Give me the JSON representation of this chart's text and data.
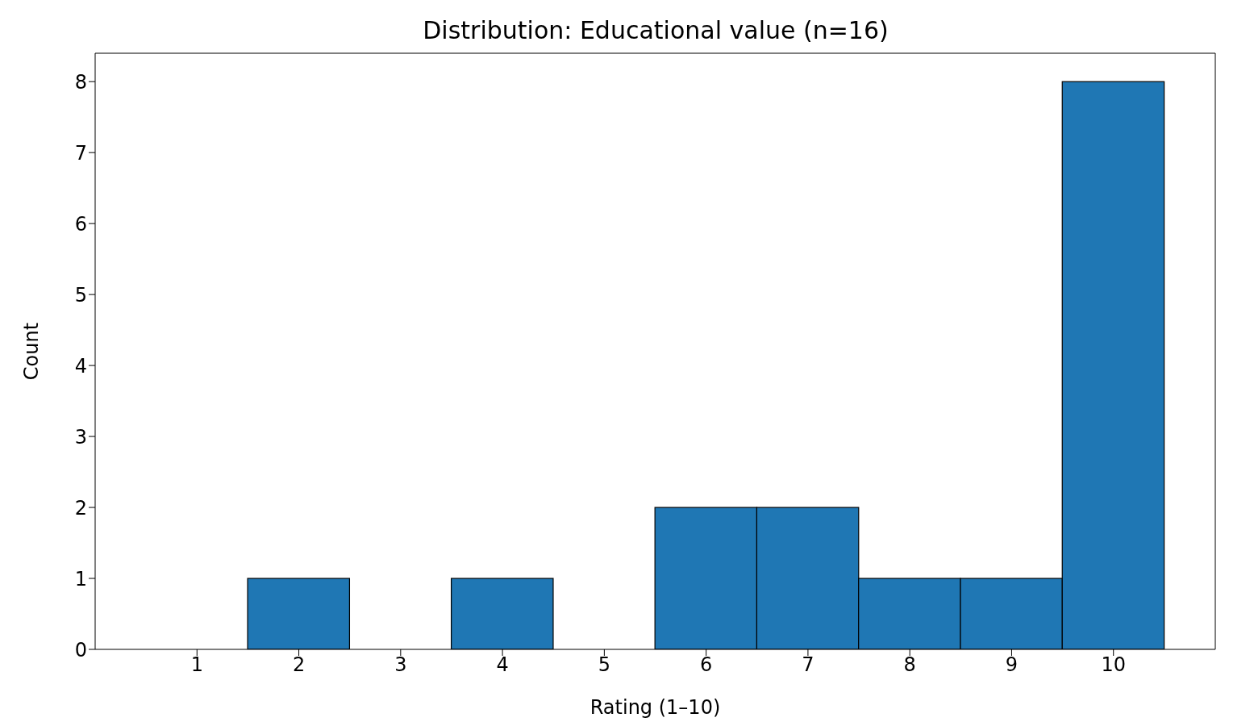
{
  "chart_data": {
    "type": "histogram",
    "title": "Distribution: Educational value (n=16)",
    "xlabel": "Rating (1–10)",
    "ylabel": "Count",
    "bins": [
      0.5,
      1.5,
      2.5,
      3.5,
      4.5,
      5.5,
      6.5,
      7.5,
      8.5,
      9.5,
      10.5
    ],
    "values": [
      0,
      1,
      0,
      1,
      0,
      2,
      2,
      1,
      1,
      8
    ],
    "color": "#1f77b4",
    "xlim": [
      0,
      11
    ],
    "xticks": [
      1,
      2,
      3,
      4,
      5,
      6,
      7,
      8,
      9,
      10
    ],
    "ylim": [
      0,
      8.4
    ],
    "yticks": [
      0,
      1,
      2,
      3,
      4,
      5,
      6,
      7,
      8
    ],
    "grid": false,
    "legend": false
  }
}
